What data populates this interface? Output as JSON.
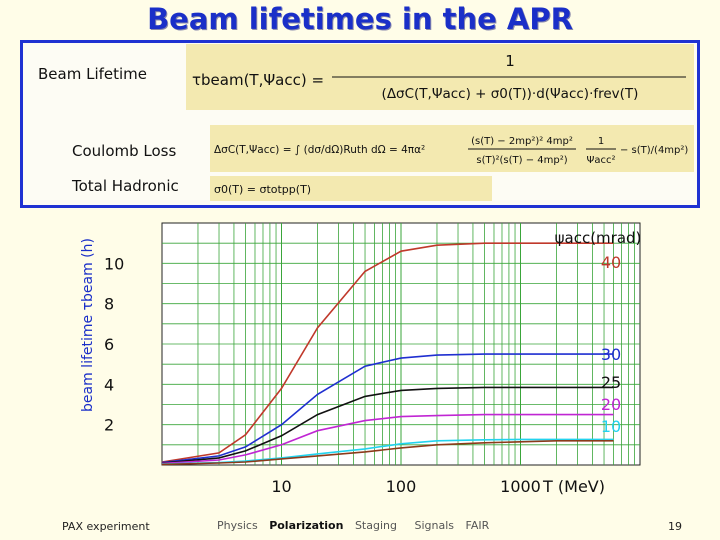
{
  "slide": {
    "title": "Beam lifetimes in the APR",
    "footer_left": "PAX experiment",
    "page_number": "19",
    "nav": [
      "Physics",
      "Polarization",
      "Staging",
      "Signals",
      "FAIR"
    ],
    "nav_current": "Polarization"
  },
  "formulas": {
    "beam_lifetime_label": "Beam Lifetime",
    "coulomb_loss_label": "Coulomb Loss",
    "total_hadronic_label": "Total Hadronic",
    "beam_lifetime_lhs": "τbeam(T,Ψacc) =",
    "beam_lifetime_num": "1",
    "beam_lifetime_den": "(ΔσC(T,Ψacc) + σ0(T))·d(Ψacc)·frev(T)",
    "coulomb_lhs": "ΔσC(T,Ψacc) = ∫ (dσ/dΩ)Ruth dΩ = 4πα²",
    "coulomb_mid": "(s(T) − 2mp²)² 4mp²",
    "coulomb_mid_den": "s(T)²(s(T) − 4mp²)",
    "coulomb_right_num": "1",
    "coulomb_right_den": "Ψacc²",
    "coulomb_right_tail": "− s(T)/(4mp²)",
    "hadronic": "σ0(T) = σtotpp(T)"
  },
  "chart_data": {
    "type": "line",
    "title": "",
    "xlabel": "T (MeV)",
    "ylabel": "beam lifetime τbeam (h)",
    "xscale": "log",
    "xlim": [
      1,
      10000
    ],
    "ylim": [
      0,
      12
    ],
    "x_ticks": [
      10,
      100,
      1000
    ],
    "y_ticks": [
      2,
      4,
      6,
      8,
      10
    ],
    "grid": true,
    "legend_title": "ψacc(mrad)",
    "legend_placement": "right",
    "series": [
      {
        "name": "40",
        "color": "#c0392b",
        "x": [
          1,
          3,
          5,
          10,
          20,
          50,
          100,
          200,
          500,
          1000,
          2000,
          3000,
          5000,
          6000
        ],
        "values": [
          0.15,
          0.6,
          1.5,
          3.8,
          6.8,
          9.6,
          10.6,
          10.9,
          11.0,
          11.0,
          11.0,
          11.0,
          11.0,
          11.0
        ]
      },
      {
        "name": "30",
        "color": "#1f2fd0",
        "x": [
          1,
          3,
          5,
          10,
          20,
          50,
          100,
          200,
          500,
          1000,
          2000,
          3000,
          5000,
          6000
        ],
        "values": [
          0.12,
          0.45,
          0.9,
          2.0,
          3.5,
          4.9,
          5.3,
          5.45,
          5.5,
          5.5,
          5.5,
          5.5,
          5.5,
          5.5
        ]
      },
      {
        "name": "25",
        "color": "#111111",
        "x": [
          1,
          3,
          5,
          10,
          20,
          50,
          100,
          200,
          500,
          1000,
          2000,
          3000,
          5000,
          6000
        ],
        "values": [
          0.1,
          0.35,
          0.7,
          1.45,
          2.5,
          3.4,
          3.7,
          3.8,
          3.85,
          3.85,
          3.85,
          3.85,
          3.85,
          3.85
        ]
      },
      {
        "name": "20",
        "color": "#c026d3",
        "x": [
          1,
          3,
          5,
          10,
          20,
          50,
          100,
          200,
          500,
          1000,
          2000,
          3000,
          5000,
          6000
        ],
        "values": [
          0.08,
          0.25,
          0.5,
          1.0,
          1.7,
          2.2,
          2.4,
          2.45,
          2.5,
          2.5,
          2.5,
          2.5,
          2.5,
          2.5
        ]
      },
      {
        "name": "10",
        "color": "#22d3ee",
        "x": [
          1,
          3,
          5,
          10,
          20,
          50,
          100,
          200,
          500,
          1000,
          2000,
          3000,
          5000,
          6000
        ],
        "values": [
          0.05,
          0.12,
          0.2,
          0.35,
          0.55,
          0.8,
          1.05,
          1.2,
          1.25,
          1.27,
          1.27,
          1.27,
          1.27,
          1.27
        ]
      },
      {
        "name": "",
        "color": "#8b3a1a",
        "x": [
          1,
          3,
          5,
          10,
          20,
          50,
          100,
          200,
          500,
          1000,
          2000,
          3000,
          5000,
          6000
        ],
        "values": [
          0.03,
          0.1,
          0.15,
          0.3,
          0.45,
          0.65,
          0.85,
          1.0,
          1.1,
          1.15,
          1.2,
          1.2,
          1.2,
          1.2
        ]
      }
    ]
  }
}
